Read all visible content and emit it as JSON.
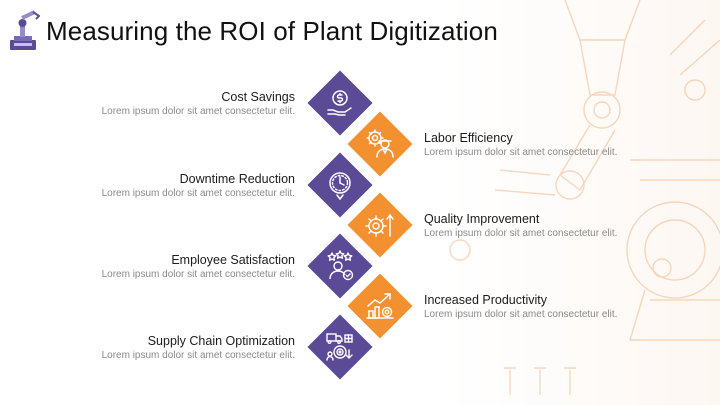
{
  "title": "Measuring the ROI of Plant Digitization",
  "colors": {
    "purple": "#5b4a95",
    "orange": "#f39030",
    "text": "#1c1c1c",
    "muted": "#8a8a8a"
  },
  "items": [
    {
      "heading": "Cost Savings",
      "desc": "Lorem ipsum dolor sit amet consectetur elit.",
      "icon": "dollar-hand-icon",
      "color": "purple",
      "side": "left"
    },
    {
      "heading": "Labor Efficiency",
      "desc": "Lorem ipsum dolor sit amet consectetur elit.",
      "icon": "worker-gear-icon",
      "color": "orange",
      "side": "right"
    },
    {
      "heading": "Downtime Reduction",
      "desc": "Lorem ipsum dolor sit amet consectetur elit.",
      "icon": "clock-down-icon",
      "color": "purple",
      "side": "left"
    },
    {
      "heading": "Quality Improvement",
      "desc": "Lorem ipsum dolor sit amet consectetur elit.",
      "icon": "gear-arrow-up-icon",
      "color": "orange",
      "side": "right"
    },
    {
      "heading": "Employee Satisfaction",
      "desc": "Lorem ipsum dolor sit amet consectetur elit.",
      "icon": "employee-stars-icon",
      "color": "purple",
      "side": "left"
    },
    {
      "heading": "Increased Productivity",
      "desc": "Lorem ipsum dolor sit amet consectetur elit.",
      "icon": "chart-growth-icon",
      "color": "orange",
      "side": "right"
    },
    {
      "heading": "Supply Chain Optimization",
      "desc": "Lorem ipsum dolor sit amet consectetur elit.",
      "icon": "supply-chain-icon",
      "color": "purple",
      "side": "left"
    }
  ]
}
